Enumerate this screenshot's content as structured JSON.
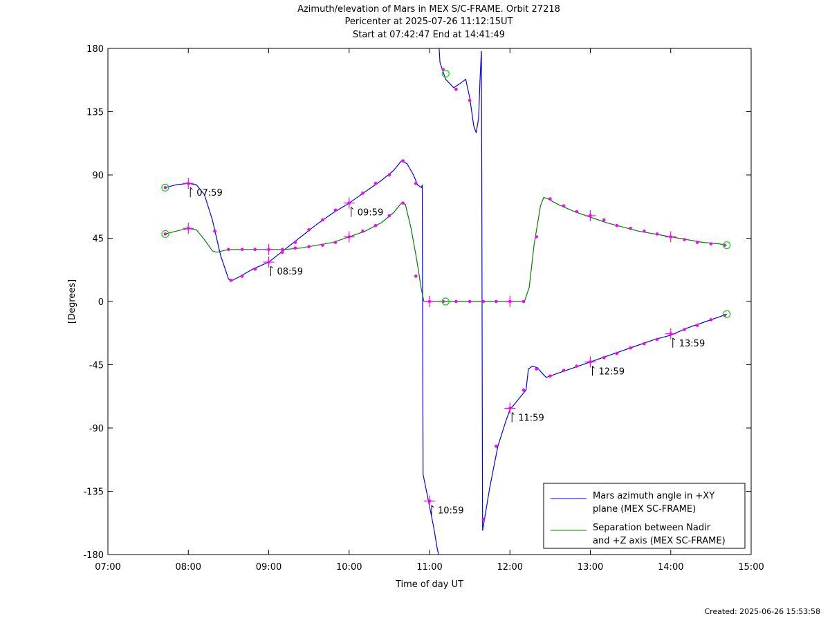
{
  "title_lines": [
    "Azimuth/elevation of Mars in MEX S/C-FRAME.  Orbit 27218",
    "Pericenter at 2025-07-26 11:12:15UT",
    "Start at 07:42:47 End at 14:41:49"
  ],
  "created": "Created: 2025-06-26 15:53:58",
  "chart_data": {
    "type": "line",
    "title": "Azimuth/elevation of Mars in MEX S/C-FRAME.  Orbit 27218",
    "xlabel": "Time of day UT",
    "ylabel": "[Degrees]",
    "xlim": [
      7.0,
      15.0
    ],
    "ylim": [
      -180,
      180
    ],
    "xticks": [
      7,
      8,
      9,
      10,
      11,
      12,
      13,
      14,
      15
    ],
    "xtick_labels": [
      "07:00",
      "08:00",
      "09:00",
      "10:00",
      "11:00",
      "12:00",
      "13:00",
      "14:00",
      "15:00"
    ],
    "yticks": [
      -180,
      -135,
      -90,
      -45,
      0,
      45,
      90,
      135,
      180
    ],
    "ytick_labels": [
      "-180",
      "-135",
      "-90",
      "-45",
      "0",
      "45",
      "90",
      "135",
      "180"
    ],
    "grid": false,
    "legend_position": "bottom-right",
    "series": [
      {
        "name": "Mars azimuth angle in +XY plane (MEX SC-FRAME)",
        "legend_lines": [
          "Mars azimuth angle in +XY",
          "plane (MEX SC-FRAME)"
        ],
        "color": "#0000ff",
        "segments": [
          [
            [
              7.713,
              81
            ],
            [
              7.85,
              83
            ],
            [
              8.0,
              84
            ],
            [
              8.1,
              83
            ],
            [
              8.2,
              76
            ],
            [
              8.3,
              58
            ],
            [
              8.4,
              33
            ],
            [
              8.5,
              16
            ],
            [
              8.53,
              14.5
            ],
            [
              8.65,
              18
            ],
            [
              8.8,
              23
            ],
            [
              9.0,
              28
            ],
            [
              9.2,
              37
            ],
            [
              9.4,
              46
            ],
            [
              9.6,
              55
            ],
            [
              9.8,
              63
            ],
            [
              10.0,
              70
            ],
            [
              10.2,
              78
            ],
            [
              10.4,
              86
            ],
            [
              10.55,
              93
            ],
            [
              10.65,
              100
            ],
            [
              10.72,
              98
            ],
            [
              10.8,
              90
            ],
            [
              10.85,
              83
            ],
            [
              10.9,
              81
            ],
            [
              10.91,
              83
            ]
          ],
          [
            [
              10.91,
              83
            ],
            [
              10.92,
              -123
            ],
            [
              10.98,
              -140
            ],
            [
              11.05,
              -160
            ],
            [
              11.1,
              -177
            ],
            [
              11.115,
              -180
            ]
          ],
          [
            [
              11.12,
              180
            ],
            [
              11.13,
              170
            ],
            [
              11.2,
              158
            ],
            [
              11.3,
              152
            ],
            [
              11.38,
              155
            ],
            [
              11.45,
              158
            ],
            [
              11.5,
              145
            ],
            [
              11.55,
              125
            ],
            [
              11.58,
              120
            ],
            [
              11.61,
              130
            ],
            [
              11.63,
              160
            ],
            [
              11.645,
              178
            ]
          ],
          [
            [
              11.645,
              178
            ],
            [
              11.65,
              75
            ],
            [
              11.66,
              -163
            ],
            [
              11.75,
              -132
            ],
            [
              11.85,
              -103
            ],
            [
              11.95,
              -85
            ],
            [
              12.0,
              -77
            ],
            [
              12.1,
              -70
            ],
            [
              12.2,
              -63
            ],
            [
              12.23,
              -48
            ],
            [
              12.28,
              -46
            ],
            [
              12.34,
              -47
            ],
            [
              12.4,
              -51
            ],
            [
              12.45,
              -54
            ],
            [
              12.6,
              -51
            ],
            [
              12.8,
              -47
            ],
            [
              13.0,
              -43
            ],
            [
              13.2,
              -39
            ],
            [
              13.4,
              -35
            ],
            [
              13.6,
              -31
            ],
            [
              13.8,
              -27
            ],
            [
              14.0,
              -24
            ],
            [
              14.2,
              -19
            ],
            [
              14.4,
              -15
            ],
            [
              14.6,
              -11
            ],
            [
              14.697,
              -9
            ]
          ]
        ],
        "markers": [
          [
            7.713,
            81
          ],
          [
            8.0,
            84
          ],
          [
            8.33,
            50
          ],
          [
            8.53,
            15
          ],
          [
            8.67,
            18
          ],
          [
            8.83,
            23
          ],
          [
            9.0,
            28
          ],
          [
            9.17,
            35
          ],
          [
            9.33,
            42
          ],
          [
            9.5,
            51
          ],
          [
            9.67,
            58
          ],
          [
            9.83,
            65
          ],
          [
            10.0,
            70
          ],
          [
            10.17,
            77
          ],
          [
            10.33,
            84
          ],
          [
            10.5,
            90
          ],
          [
            10.67,
            100
          ],
          [
            10.83,
            84
          ],
          [
            11.0,
            -142
          ],
          [
            11.17,
            165
          ],
          [
            11.33,
            151
          ],
          [
            11.5,
            143
          ],
          [
            11.67,
            -155
          ],
          [
            11.83,
            -103
          ],
          [
            12.0,
            -76
          ],
          [
            12.17,
            -63
          ],
          [
            12.33,
            -48
          ],
          [
            12.5,
            -53
          ],
          [
            12.67,
            -49
          ],
          [
            12.83,
            -46
          ],
          [
            13.0,
            -43
          ],
          [
            13.17,
            -40
          ],
          [
            13.33,
            -37
          ],
          [
            13.5,
            -33
          ],
          [
            13.67,
            -30
          ],
          [
            13.83,
            -27
          ],
          [
            14.0,
            -23
          ],
          [
            14.17,
            -20
          ],
          [
            14.33,
            -17
          ],
          [
            14.5,
            -13
          ],
          [
            14.67,
            -10
          ]
        ],
        "hour_marks": [
          {
            "x": 8.0,
            "y": 84,
            "label": "07:59"
          },
          {
            "x": 9.0,
            "y": 28,
            "label": "08:59"
          },
          {
            "x": 10.0,
            "y": 70,
            "label": "09:59"
          },
          {
            "x": 11.0,
            "y": -142,
            "label": "10:59"
          },
          {
            "x": 12.0,
            "y": -76,
            "label": "11:59"
          },
          {
            "x": 13.0,
            "y": -43,
            "label": "12:59"
          },
          {
            "x": 14.0,
            "y": -23,
            "label": "13:59"
          }
        ],
        "circles": [
          [
            7.713,
            81
          ],
          [
            11.2,
            162
          ],
          [
            14.697,
            -9
          ]
        ]
      },
      {
        "name": "Separation between Nadir and +Z axis (MEX SC-FRAME)",
        "legend_lines": [
          "Separation between Nadir",
          "and +Z axis (MEX SC-FRAME)"
        ],
        "color": "#008000",
        "segments": [
          [
            [
              7.713,
              48
            ],
            [
              7.85,
              50
            ],
            [
              8.0,
              52
            ],
            [
              8.1,
              51
            ],
            [
              8.2,
              44
            ],
            [
              8.3,
              36
            ],
            [
              8.35,
              35
            ],
            [
              8.5,
              37
            ],
            [
              8.7,
              37
            ],
            [
              9.0,
              37
            ],
            [
              9.2,
              37
            ],
            [
              9.4,
              38
            ],
            [
              9.6,
              40
            ],
            [
              9.8,
              42
            ],
            [
              10.0,
              46
            ],
            [
              10.2,
              50
            ],
            [
              10.4,
              56
            ],
            [
              10.55,
              63
            ],
            [
              10.65,
              70
            ],
            [
              10.7,
              69
            ],
            [
              10.77,
              52
            ],
            [
              10.84,
              30
            ],
            [
              10.9,
              8
            ],
            [
              10.93,
              0
            ],
            [
              11.0,
              0
            ],
            [
              11.5,
              0
            ],
            [
              12.0,
              0
            ],
            [
              12.18,
              0
            ],
            [
              12.24,
              10
            ],
            [
              12.3,
              40
            ],
            [
              12.38,
              68
            ],
            [
              12.42,
              74
            ],
            [
              12.47,
              73
            ],
            [
              12.6,
              69
            ],
            [
              12.8,
              64
            ],
            [
              13.0,
              60
            ],
            [
              13.2,
              56
            ],
            [
              13.4,
              53
            ],
            [
              13.6,
              50
            ],
            [
              13.8,
              48
            ],
            [
              14.0,
              46
            ],
            [
              14.2,
              44
            ],
            [
              14.4,
              42
            ],
            [
              14.6,
              41
            ],
            [
              14.697,
              40
            ]
          ]
        ],
        "markers": [
          [
            7.713,
            48
          ],
          [
            8.0,
            52
          ],
          [
            8.33,
            50
          ],
          [
            8.5,
            37
          ],
          [
            8.67,
            37
          ],
          [
            8.83,
            37
          ],
          [
            9.0,
            37
          ],
          [
            9.17,
            37
          ],
          [
            9.33,
            38
          ],
          [
            9.5,
            39
          ],
          [
            9.67,
            40
          ],
          [
            9.83,
            42
          ],
          [
            10.0,
            46
          ],
          [
            10.17,
            50
          ],
          [
            10.33,
            54
          ],
          [
            10.5,
            61
          ],
          [
            10.67,
            70
          ],
          [
            10.83,
            18
          ],
          [
            11.0,
            0
          ],
          [
            11.17,
            0
          ],
          [
            11.33,
            0
          ],
          [
            11.5,
            0
          ],
          [
            11.67,
            0
          ],
          [
            11.83,
            0
          ],
          [
            12.0,
            0
          ],
          [
            12.17,
            0
          ],
          [
            12.33,
            46
          ],
          [
            12.5,
            73
          ],
          [
            12.67,
            68
          ],
          [
            12.83,
            64
          ],
          [
            13.0,
            61
          ],
          [
            13.17,
            58
          ],
          [
            13.33,
            54
          ],
          [
            13.5,
            52
          ],
          [
            13.67,
            50
          ],
          [
            13.83,
            48
          ],
          [
            14.0,
            46
          ],
          [
            14.17,
            44
          ],
          [
            14.33,
            42
          ],
          [
            14.5,
            41
          ],
          [
            14.67,
            40
          ]
        ],
        "hour_marks": [
          {
            "x": 8.0,
            "y": 52
          },
          {
            "x": 9.0,
            "y": 37
          },
          {
            "x": 10.0,
            "y": 46
          },
          {
            "x": 11.0,
            "y": 0
          },
          {
            "x": 12.0,
            "y": 0
          },
          {
            "x": 13.0,
            "y": 61
          },
          {
            "x": 14.0,
            "y": 46
          }
        ],
        "circles": [
          [
            7.713,
            48
          ],
          [
            11.2,
            0
          ],
          [
            14.697,
            40
          ]
        ]
      }
    ]
  }
}
